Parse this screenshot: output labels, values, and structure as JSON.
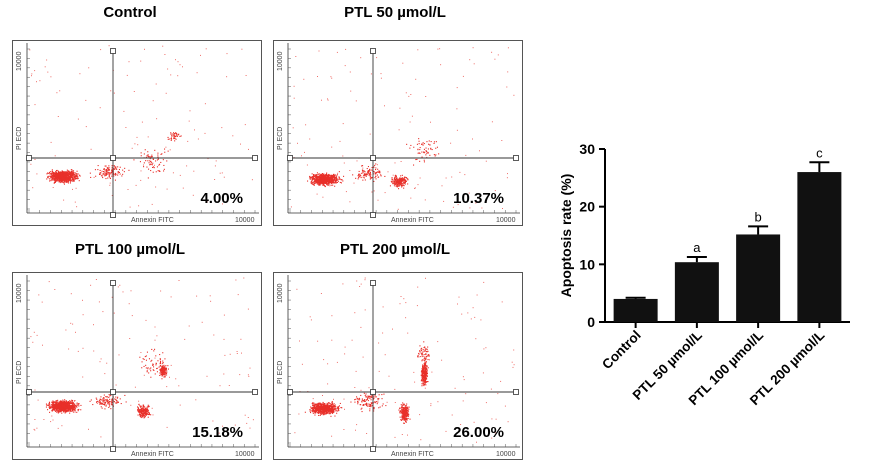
{
  "panels": [
    {
      "title": "Control",
      "percent": "4.00%",
      "ylabel": "PI ECD",
      "ytop": "10000",
      "xlabel": "Annexin FITC",
      "xmax": "10000"
    },
    {
      "title": "PTL 50 µmol/L",
      "percent": "10.37%",
      "ylabel": "PI ECD",
      "ytop": "10000",
      "xlabel": "Annexin FITC",
      "xmax": "10000"
    },
    {
      "title": "PTL 100 µmol/L",
      "percent": "15.18%",
      "ylabel": "PI ECD",
      "ytop": "10000",
      "xlabel": "Annexin FITC",
      "xmax": "10000"
    },
    {
      "title": "PTL 200 µmol/L",
      "percent": "26.00%",
      "ylabel": "PI ECD",
      "ytop": "10000",
      "xlabel": "Annexin FITC",
      "xmax": "10000"
    }
  ],
  "colors": {
    "dots": "#e8302a",
    "bar": "#111111",
    "axis": "#000000"
  },
  "chart_data": {
    "type": "bar",
    "title": "",
    "xlabel": "",
    "ylabel": "Apoptosis rate (%)",
    "ylim": [
      0,
      30
    ],
    "yticks": [
      "0",
      "10",
      "20",
      "30"
    ],
    "categories": [
      "Control",
      "PTL 50 µmol/L",
      "PTL 100 µmol/L",
      "PTL 200 µmol/L"
    ],
    "values": [
      4.0,
      10.37,
      15.18,
      26.0
    ],
    "errors": [
      0.2,
      0.9,
      1.4,
      1.7
    ],
    "annotations": [
      "",
      "a",
      "b",
      "c"
    ]
  }
}
